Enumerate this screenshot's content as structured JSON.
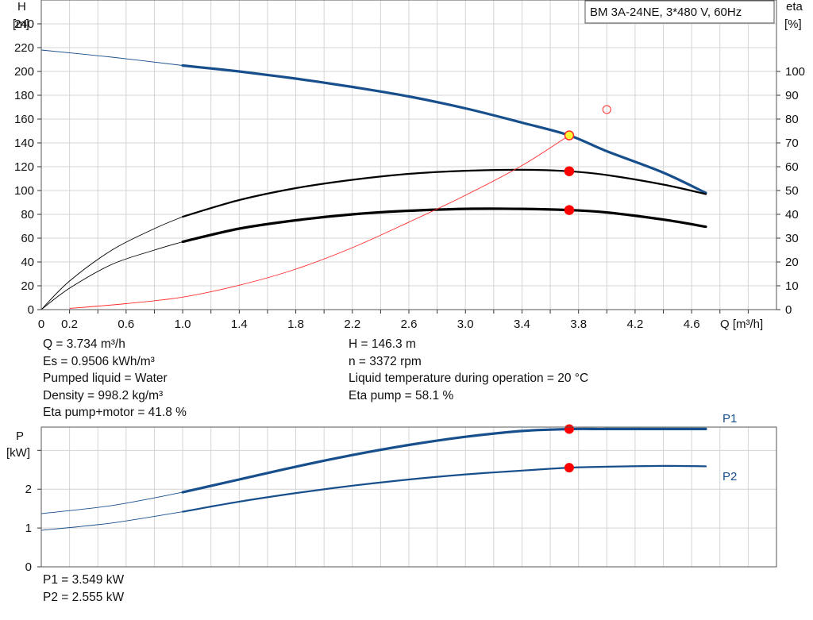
{
  "chart_data": [
    {
      "type": "line",
      "title": "BM 3A-24NE, 3*480 V, 60Hz",
      "xlabel": "Q [m³/h]",
      "ylabel": [
        "H",
        "[m]"
      ],
      "y2label": [
        "eta",
        "[%]"
      ],
      "xlim": [
        0,
        5.2
      ],
      "ylim": [
        0,
        260
      ],
      "y2lim": [
        0,
        130
      ],
      "grid": true,
      "xticks": [
        "0",
        "0.2",
        "0.6",
        "1.0",
        "1.4",
        "1.8",
        "2.2",
        "2.6",
        "3.0",
        "3.4",
        "3.8",
        "4.2",
        "4.6"
      ],
      "xtick_values": [
        0,
        0.2,
        0.6,
        1.0,
        1.4,
        1.8,
        2.2,
        2.6,
        3.0,
        3.4,
        3.8,
        4.2,
        4.6
      ],
      "yticks": [
        0,
        20,
        40,
        60,
        80,
        100,
        120,
        140,
        160,
        180,
        200,
        220,
        240
      ],
      "y2ticks": [
        0,
        10,
        20,
        30,
        40,
        50,
        60,
        70,
        80,
        90,
        100
      ],
      "series": [
        {
          "axis": "left",
          "color": "#174f8c",
          "x": [
            0,
            0.5,
            1.0,
            1.4,
            1.8,
            2.2,
            2.6,
            3.0,
            3.4,
            3.734,
            4.0,
            4.4,
            4.7
          ],
          "values": [
            218,
            212,
            205,
            200,
            194,
            187,
            179,
            169,
            157,
            146.3,
            133,
            115,
            98
          ],
          "solid_from": 1.0
        },
        {
          "axis": "right",
          "color": "#000000",
          "x": [
            0,
            0.2,
            0.5,
            0.8,
            1.0,
            1.4,
            1.8,
            2.2,
            2.6,
            3.0,
            3.4,
            3.734,
            4.0,
            4.4,
            4.7
          ],
          "values": [
            0,
            12,
            25,
            34,
            39,
            46,
            51,
            54.5,
            57,
            58.3,
            58.7,
            58.1,
            56.5,
            52.5,
            48.5
          ],
          "solid_from": 1.0
        },
        {
          "axis": "right",
          "color": "#000000",
          "x": [
            0,
            0.2,
            0.5,
            0.8,
            1.0,
            1.4,
            1.8,
            2.2,
            2.6,
            3.0,
            3.4,
            3.734,
            4.0,
            4.4,
            4.7
          ],
          "values": [
            0,
            9,
            19,
            25,
            28.5,
            34,
            37.5,
            40,
            41.5,
            42.3,
            42.3,
            41.8,
            40.8,
            37.8,
            34.8
          ],
          "solid_from": 1.0
        },
        {
          "axis": "left",
          "color": "#ff2a2a",
          "x": [
            0.2,
            0.6,
            1.0,
            1.4,
            1.8,
            2.2,
            2.6,
            3.0,
            3.4,
            3.734
          ],
          "values": [
            1,
            5,
            10.5,
            20.5,
            34,
            52,
            73.5,
            96,
            121,
            146.3
          ],
          "thin": true
        }
      ],
      "points": [
        {
          "x": 3.734,
          "y": 146.3,
          "axis": "left",
          "fill": "#ffff33",
          "stroke": "#ff2a2a"
        },
        {
          "x": 3.734,
          "y": 58.1,
          "axis": "right",
          "fill": "#ff0000",
          "stroke": "#ff0000"
        },
        {
          "x": 3.734,
          "y": 41.8,
          "axis": "right",
          "fill": "#ff0000",
          "stroke": "#ff0000"
        },
        {
          "x": 4.0,
          "y": 168,
          "axis": "left",
          "fill": "none",
          "stroke": "#ff2a2a",
          "hollow": true
        }
      ]
    },
    {
      "type": "line",
      "ylabel": [
        "P",
        "[kW]"
      ],
      "xlim": [
        0,
        5.2
      ],
      "ylim": [
        0,
        3.6
      ],
      "yticks": [
        0,
        1,
        2,
        3
      ],
      "ytick_labels": [
        "0",
        "1",
        "2",
        ""
      ],
      "grid": true,
      "series": [
        {
          "name": "P1",
          "color": "#174f8c",
          "x": [
            0,
            0.5,
            1.0,
            1.4,
            1.8,
            2.2,
            2.6,
            3.0,
            3.4,
            3.734,
            4.0,
            4.4,
            4.7
          ],
          "values": [
            1.37,
            1.58,
            1.92,
            2.25,
            2.58,
            2.88,
            3.14,
            3.35,
            3.5,
            3.549,
            3.55,
            3.55,
            3.55
          ],
          "solid_from": 1.0
        },
        {
          "name": "P2",
          "color": "#174f8c",
          "x": [
            0,
            0.5,
            1.0,
            1.4,
            1.8,
            2.2,
            2.6,
            3.0,
            3.4,
            3.734,
            4.0,
            4.4,
            4.7
          ],
          "values": [
            0.94,
            1.13,
            1.42,
            1.68,
            1.9,
            2.09,
            2.25,
            2.38,
            2.48,
            2.555,
            2.58,
            2.6,
            2.59
          ],
          "solid_from": 1.0
        }
      ],
      "points": [
        {
          "x": 3.734,
          "y": 3.549
        },
        {
          "x": 3.734,
          "y": 2.555
        }
      ]
    }
  ],
  "info_left": [
    "Q = 3.734 m³/h",
    "Es = 0.9506 kWh/m³",
    "Pumped liquid = Water",
    "Density = 998.2 kg/m³",
    "Eta pump+motor = 41.8 %"
  ],
  "info_right": [
    "H = 146.3 m",
    "n = 3372 rpm",
    "Liquid temperature during operation = 20 °C",
    "Eta pump = 58.1 %"
  ],
  "info_bottom": [
    "P1 = 3.549 kW",
    "P2 = 2.555 kW"
  ]
}
